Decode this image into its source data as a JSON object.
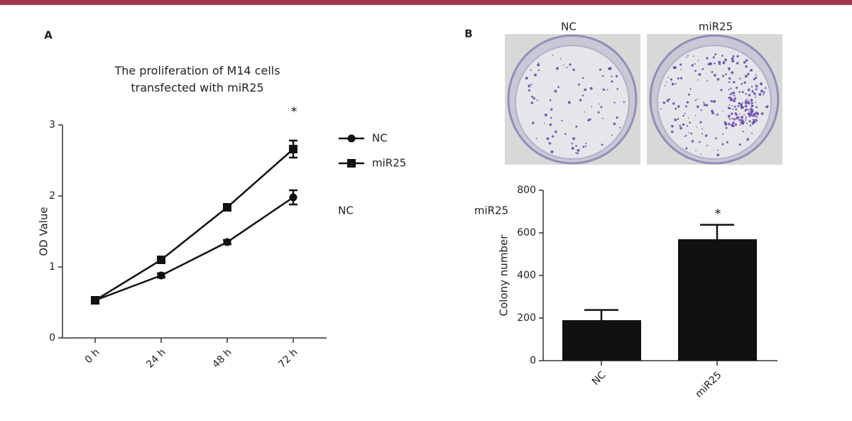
{
  "chart_data": [
    {
      "type": "line",
      "panel": "A",
      "title": "The proliferation of M14 cells transfected with miR25",
      "ylabel": "OD Value",
      "categories": [
        "0 h",
        "24 h",
        "48 h",
        "72 h"
      ],
      "series": [
        {
          "name": "NC",
          "color": "#111111",
          "marker": "circle",
          "values": [
            0.53,
            0.88,
            1.35,
            1.98
          ],
          "errors": [
            0.02,
            0.03,
            0.03,
            0.1
          ]
        },
        {
          "name": "miR25",
          "color": "#111111",
          "marker": "square",
          "values": [
            0.53,
            1.1,
            1.84,
            2.66
          ],
          "errors": [
            0.02,
            0.03,
            0.03,
            0.12
          ]
        }
      ],
      "ylim": [
        0,
        3
      ],
      "yticks": [
        0,
        1,
        2,
        3
      ],
      "annotations": [
        "*",
        "NC"
      ]
    },
    {
      "type": "bar",
      "panel": "B",
      "image_labels": [
        "NC",
        "miR25"
      ],
      "ylabel": "Colony number",
      "categories": [
        "NC",
        "miR25"
      ],
      "series": [
        {
          "color": "#111111",
          "values": [
            190,
            570
          ],
          "errors": [
            48,
            68
          ]
        }
      ],
      "ylim": [
        0,
        800
      ],
      "yticks": [
        0,
        200,
        400,
        600,
        800
      ],
      "annotations": [
        "*",
        "miR25"
      ]
    }
  ]
}
